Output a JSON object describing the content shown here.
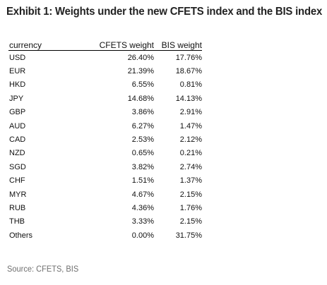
{
  "title": "Exhibit 1: Weights under the new CFETS index and the BIS index",
  "table": {
    "headers": {
      "currency": "currency",
      "cfets": "CFETS weight",
      "bis": "BIS weight"
    },
    "rows": [
      {
        "currency": "USD",
        "cfets": "26.40%",
        "bis": "17.76%"
      },
      {
        "currency": "EUR",
        "cfets": "21.39%",
        "bis": "18.67%"
      },
      {
        "currency": "HKD",
        "cfets": "6.55%",
        "bis": "0.81%"
      },
      {
        "currency": "JPY",
        "cfets": "14.68%",
        "bis": "14.13%"
      },
      {
        "currency": "GBP",
        "cfets": "3.86%",
        "bis": "2.91%"
      },
      {
        "currency": "AUD",
        "cfets": "6.27%",
        "bis": "1.47%"
      },
      {
        "currency": "CAD",
        "cfets": "2.53%",
        "bis": "2.12%"
      },
      {
        "currency": "NZD",
        "cfets": "0.65%",
        "bis": "0.21%"
      },
      {
        "currency": "SGD",
        "cfets": "3.82%",
        "bis": "2.74%"
      },
      {
        "currency": "CHF",
        "cfets": "1.51%",
        "bis": "1.37%"
      },
      {
        "currency": "MYR",
        "cfets": "4.67%",
        "bis": "2.15%"
      },
      {
        "currency": "RUB",
        "cfets": "4.36%",
        "bis": "1.76%"
      },
      {
        "currency": "THB",
        "cfets": "3.33%",
        "bis": "2.15%"
      },
      {
        "currency": "Others",
        "cfets": "0.00%",
        "bis": "31.75%"
      }
    ]
  },
  "source": "Source: CFETS, BIS"
}
